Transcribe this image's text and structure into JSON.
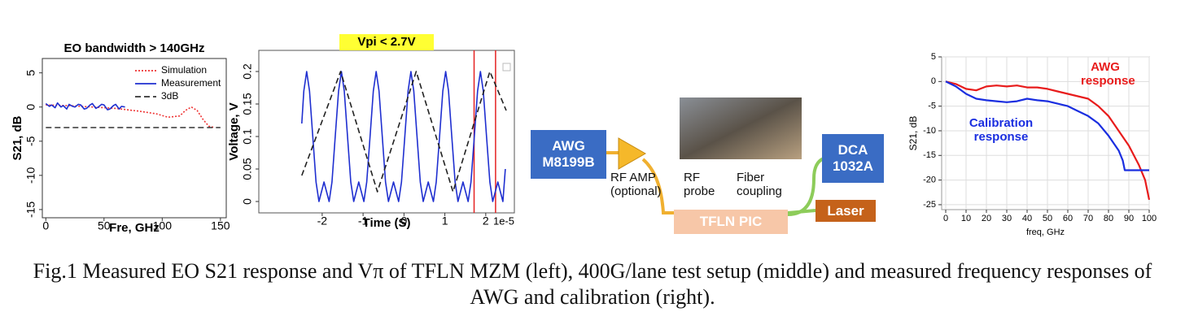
{
  "chart_data": [
    {
      "type": "line",
      "title": "EO bandwidth > 140GHz",
      "xlabel": "Fre, GHz",
      "ylabel": "S21, dB",
      "xlim": [
        -3,
        155
      ],
      "xticks": [
        0,
        50,
        100,
        150
      ],
      "ylim": [
        -16.2,
        7.1
      ],
      "yticks": [
        5,
        0,
        -5,
        -10,
        -15
      ],
      "legend": "upper right",
      "series": [
        {
          "name": "Simulation",
          "color": "#ee3333",
          "linestyle": "dotted",
          "x": [
            0,
            20,
            40,
            60,
            80,
            95,
            105,
            115,
            120,
            125,
            130,
            135,
            140,
            145
          ],
          "values": [
            0.3,
            0.2,
            0,
            -0.2,
            -0.6,
            -1,
            -1.5,
            -1.3,
            -0.5,
            0,
            -0.5,
            -1.8,
            -2.8,
            -3
          ]
        },
        {
          "name": "Measurement",
          "color": "#1f2fd0",
          "linestyle": "solid",
          "x": [
            0,
            3,
            5,
            8,
            10,
            13,
            15,
            18,
            20,
            23,
            25,
            28,
            30,
            33,
            35,
            38,
            40,
            43,
            45,
            48,
            50,
            53,
            55,
            58,
            60,
            63,
            65,
            68
          ],
          "values": [
            0.5,
            0.1,
            0.3,
            -0.1,
            0.6,
            0,
            0.2,
            -0.3,
            0.4,
            0.1,
            0,
            0.4,
            0.3,
            -0.3,
            -0.2,
            0.3,
            0.5,
            -0.2,
            0,
            0.4,
            0.3,
            -0.4,
            -0.3,
            0.2,
            0.4,
            -0.3,
            0.1,
            0
          ]
        },
        {
          "name": "3dB",
          "color": "#333333",
          "linestyle": "dashed",
          "x": [
            0,
            150
          ],
          "values": [
            -3,
            -3
          ]
        }
      ]
    },
    {
      "type": "line",
      "title": "Vpi < 2.7V",
      "title_highlight": "#ffff33",
      "xlabel": "Time (S)",
      "ylabel": "Voltage, V",
      "x_offset_label": "1e-5",
      "xlim": [
        -3.55,
        2.7
      ],
      "xticks": [
        -2,
        -1,
        0,
        1,
        2
      ],
      "ylim": [
        -0.0175,
        0.2325
      ],
      "yticks": [
        0,
        0.05,
        0.1,
        0.15,
        0.2
      ],
      "vlines": [
        1.715,
        2.24
      ],
      "vline_color": "#e52222",
      "series": [
        {
          "color": "#1f2fd0",
          "linestyle": "solid",
          "x": [
            -2.5,
            -2.45,
            -2.38,
            -2.31,
            -2.23,
            -2.15,
            -2.08,
            -1.955,
            -1.83,
            -1.76,
            -1.68,
            -1.6,
            -1.53,
            -1.46,
            -1.38,
            -1.3,
            -1.23,
            -1.105,
            -0.98,
            -0.91,
            -0.83,
            -0.75,
            -0.68,
            -0.61,
            -0.53,
            -0.45,
            -0.38,
            -0.255,
            -0.13,
            -0.06,
            0.02,
            0.1,
            0.17,
            0.24,
            0.32,
            0.4,
            0.47,
            0.595,
            0.72,
            0.79,
            0.87,
            0.95,
            1.02,
            1.09,
            1.17,
            1.25,
            1.32,
            1.445,
            1.57,
            1.64,
            1.72,
            1.8,
            1.87,
            1.94,
            2.02,
            2.1,
            2.17,
            2.295,
            2.42,
            2.48
          ],
          "values": [
            0.12,
            0.17,
            0.2,
            0.17,
            0.1,
            0.03,
            0,
            0.03,
            0,
            0.03,
            0.1,
            0.17,
            0.2,
            0.17,
            0.1,
            0.03,
            0,
            0.03,
            0,
            0.03,
            0.1,
            0.17,
            0.2,
            0.17,
            0.1,
            0.03,
            0,
            0.03,
            0,
            0.03,
            0.1,
            0.17,
            0.2,
            0.17,
            0.1,
            0.03,
            0,
            0.03,
            0,
            0.03,
            0.1,
            0.17,
            0.2,
            0.17,
            0.1,
            0.03,
            0,
            0.03,
            0,
            0.03,
            0.1,
            0.17,
            0.2,
            0.17,
            0.1,
            0.03,
            0,
            0.03,
            0,
            0.05
          ]
        },
        {
          "color": "#222222",
          "linestyle": "dashed",
          "x": [
            -2.5,
            -1.55,
            -0.65,
            0.3,
            1.2,
            2.1,
            2.5
          ],
          "values": [
            0.04,
            0.2,
            0.015,
            0.2,
            0.015,
            0.2,
            0.14
          ]
        }
      ]
    },
    {
      "type": "line",
      "xlabel": "freq, GHz",
      "ylabel": "S21, dB",
      "xlim": [
        -2,
        100
      ],
      "xticks": [
        0,
        10,
        20,
        30,
        40,
        50,
        60,
        70,
        80,
        90,
        100
      ],
      "ylim": [
        -26,
        5
      ],
      "yticks": [
        5,
        0,
        -5,
        -10,
        -15,
        -20,
        -25
      ],
      "grid": true,
      "series": [
        {
          "name": "AWG response",
          "color": "#e81c1c",
          "linestyle": "solid",
          "x": [
            0,
            5,
            10,
            15,
            20,
            25,
            30,
            35,
            40,
            45,
            50,
            55,
            60,
            65,
            70,
            75,
            80,
            85,
            90,
            95,
            98,
            100
          ],
          "values": [
            0,
            -0.5,
            -1.5,
            -1.8,
            -1,
            -0.8,
            -1,
            -0.8,
            -1.2,
            -1.2,
            -1.5,
            -2,
            -2.5,
            -3,
            -3.5,
            -5,
            -7,
            -10,
            -13,
            -17,
            -20,
            -24
          ]
        },
        {
          "name": "Calibration response",
          "color": "#1a2ee0",
          "linestyle": "solid",
          "x": [
            0,
            5,
            10,
            15,
            20,
            25,
            30,
            35,
            40,
            45,
            50,
            55,
            60,
            65,
            70,
            75,
            80,
            85,
            87,
            88,
            92,
            95,
            100
          ],
          "values": [
            0,
            -1,
            -2.5,
            -3.5,
            -3.8,
            -4,
            -4.2,
            -4,
            -3.5,
            -3.8,
            -4,
            -4.5,
            -5,
            -6,
            -7,
            -8.5,
            -11,
            -14,
            -16,
            -18,
            -18,
            -18,
            -18
          ]
        }
      ]
    }
  ],
  "diagram": {
    "nodes": [
      "AWG M8199B",
      "DCA 1032A",
      "Laser",
      "TFLN PIC"
    ],
    "labels": [
      "RF AMP (optional)",
      "RF probe",
      "Fiber coupling"
    ]
  },
  "caption": "Fig.1 Measured EO S21 response and Vπ of TFLN MZM (left), 400G/lane test setup (middle) and measured frequency responses of AWG and calibration (right)."
}
